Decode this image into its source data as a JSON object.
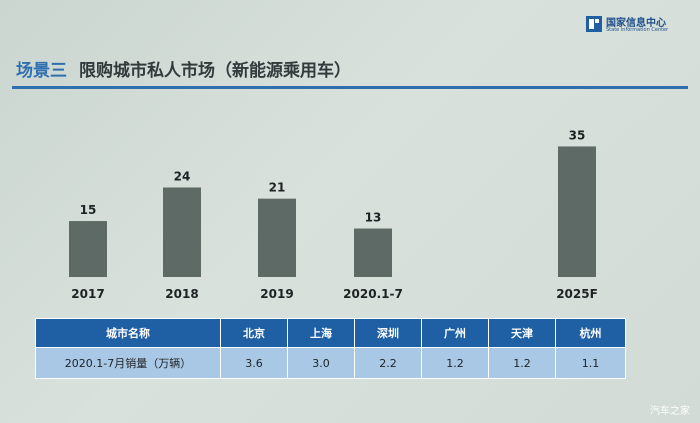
{
  "header": {
    "title_prefix": "场景三",
    "title_rest": "限购城市私人市场（新能源乘用车）",
    "logo_zh": "国家信息中心",
    "logo_en": "State Information Center",
    "accent_color": "#2f6fb0"
  },
  "chart_data": {
    "type": "bar",
    "categories": [
      "2017",
      "2018",
      "2019",
      "2020.1-7",
      "2025F"
    ],
    "values": [
      15,
      24,
      21,
      13,
      35
    ],
    "bar_color": "#5e6a66",
    "ylim": [
      0,
      40
    ],
    "grid": false,
    "data_labels": true
  },
  "table": {
    "header": [
      "城市名称",
      "北京",
      "上海",
      "深圳",
      "广州",
      "天津",
      "杭州"
    ],
    "row_label": "2020.1-7月销量（万辆）",
    "row_values": [
      "3.6",
      "3.0",
      "2.2",
      "1.2",
      "1.2",
      "1.1"
    ],
    "header_color": "#1f5fa4",
    "row_color": "#a9c8e6"
  },
  "watermark": "汽车之家"
}
